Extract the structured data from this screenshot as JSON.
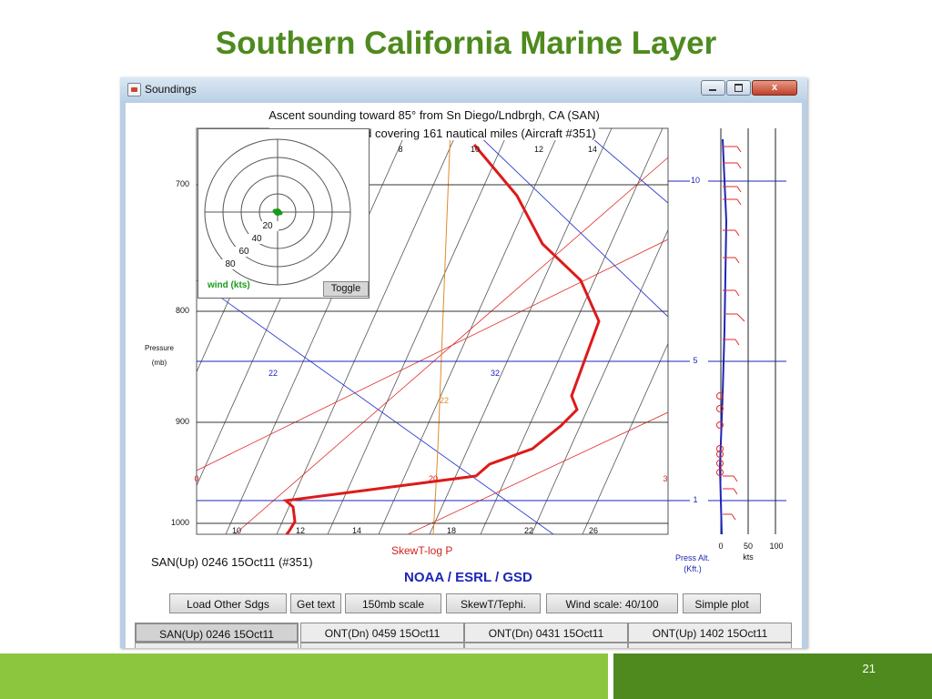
{
  "slide": {
    "title": "Southern California Marine Layer",
    "number": "21"
  },
  "window": {
    "title": "Soundings",
    "close_glyph": "x"
  },
  "plot": {
    "ascent_line1": "Ascent sounding toward 85° from Sn Diego/Lndbrgh, CA (SAN)",
    "ascent_line2": "lasting 26 min, and covering 161 nautical miles (Aircraft #351)",
    "pressure_label": "Pressure",
    "pressure_unit": "(mb)",
    "pressure_ticks": [
      "700",
      "800",
      "900",
      "1000"
    ],
    "bottom_ticks": [
      "10",
      "12",
      "14",
      "18",
      "22",
      "26"
    ],
    "top_ticks": [
      "8",
      "10",
      "12",
      "14"
    ],
    "isotherm_labels": [
      "22",
      "32",
      "22",
      "20",
      "0",
      "3"
    ],
    "altitude_ticks": [
      "10",
      "5",
      "1"
    ],
    "wind_scale_ticks": [
      "0",
      "50",
      "100"
    ],
    "wind_unit": "kts",
    "alt_label_line1": "Press Alt.",
    "alt_label_line2": "(Kft.)",
    "sounding_label": "SAN(Up) 0246 15Oct11 (#351)",
    "skewt_label": "SkewT-log P",
    "org_label": "NOAA / ESRL / GSD",
    "colors": {
      "temperature": "#dd1a1a",
      "pressure_lines": "#1d25b8",
      "dry_adiabat": "#e08a2a",
      "isotherm": "#e02a2a",
      "wind": "#1a9a1a"
    }
  },
  "wind_inset": {
    "rings": [
      "20",
      "40",
      "60",
      "80"
    ],
    "label": "wind (kts)",
    "toggle": "Toggle"
  },
  "buttons": [
    {
      "label": "Load Other Sdgs"
    },
    {
      "label": "Get text"
    },
    {
      "label": "150mb scale"
    },
    {
      "label": "SkewT/Tephi."
    },
    {
      "label": "Wind scale: 40/100"
    },
    {
      "label": "Simple plot"
    }
  ],
  "tabs": [
    {
      "label": "SAN(Up) 0246 15Oct11",
      "active": true
    },
    {
      "label": "ONT(Dn) 0459 15Oct11",
      "active": false
    },
    {
      "label": "ONT(Dn) 0431 15Oct11",
      "active": false
    },
    {
      "label": "ONT(Up) 1402 15Oct11",
      "active": false
    }
  ]
}
